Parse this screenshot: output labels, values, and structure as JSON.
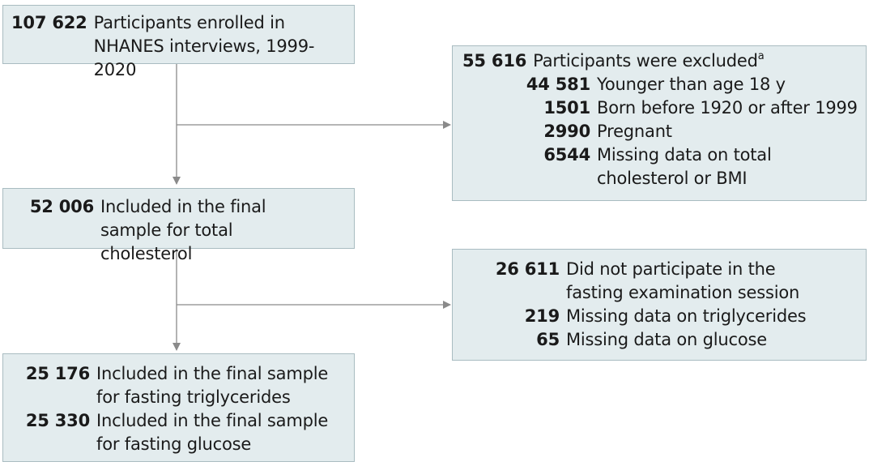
{
  "box1": {
    "number": "107 622",
    "text": "Participants enrolled in NHANES interviews, 1999-2020"
  },
  "excluded": {
    "header": {
      "number": "55 616",
      "text": "Participants were excluded",
      "footnote": "a"
    },
    "items": [
      {
        "number": "44 581",
        "text": "Younger than age 18 y"
      },
      {
        "number": "1501",
        "text": "Born before 1920 or after 1999"
      },
      {
        "number": "2990",
        "text": "Pregnant"
      },
      {
        "number": "6544",
        "text": "Missing data on total cholesterol or BMI"
      }
    ]
  },
  "box2": {
    "number": "52 006",
    "text": "Included in the final sample for total cholesterol"
  },
  "fasting_excluded": {
    "items": [
      {
        "number": "26 611",
        "text": "Did not participate in the fasting examination session"
      },
      {
        "number": "219",
        "text": "Missing data on triglycerides"
      },
      {
        "number": "65",
        "text": "Missing data on glucose"
      }
    ]
  },
  "box3": {
    "items": [
      {
        "number": "25 176",
        "text": "Included in the final sample for fasting triglycerides"
      },
      {
        "number": "25 330",
        "text": "Included in the final sample for fasting glucose"
      }
    ]
  },
  "colors": {
    "box_fill": "#e3ecee",
    "box_border": "#a9bcc1",
    "arrow": "#8a8a8a"
  }
}
